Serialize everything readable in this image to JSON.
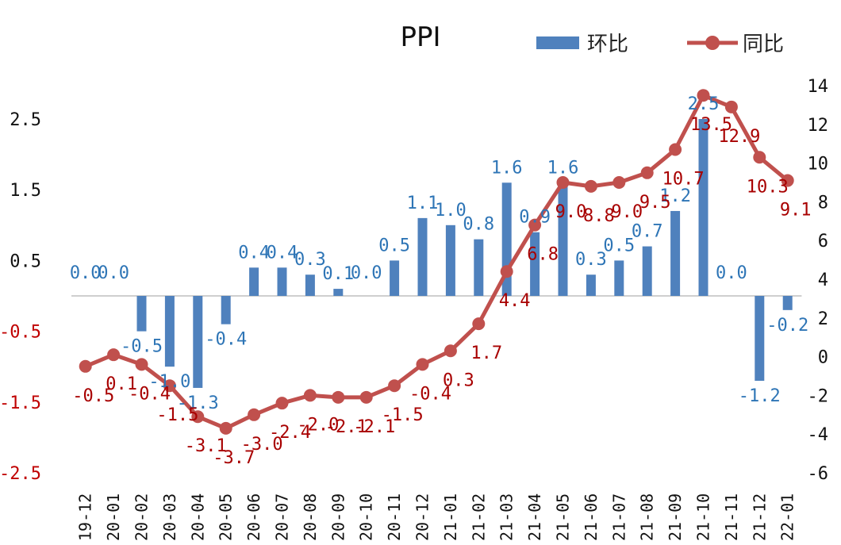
{
  "chart_data": {
    "type": "bar+line",
    "title": "PPI",
    "categories": [
      "19-12",
      "20-01",
      "20-02",
      "20-03",
      "20-04",
      "20-05",
      "20-06",
      "20-07",
      "20-08",
      "20-09",
      "20-10",
      "20-11",
      "20-12",
      "21-01",
      "21-02",
      "21-03",
      "21-04",
      "21-05",
      "21-06",
      "21-07",
      "21-08",
      "21-09",
      "21-10",
      "21-11",
      "21-12",
      "22-01"
    ],
    "series": [
      {
        "name": "环比",
        "kind": "bar",
        "axis": "left",
        "color": "#4f81bd",
        "values": [
          0.0,
          0.0,
          -0.5,
          -1.0,
          -1.3,
          -0.4,
          0.4,
          0.4,
          0.3,
          0.1,
          0.0,
          0.5,
          1.1,
          1.0,
          0.8,
          1.6,
          0.9,
          1.6,
          0.3,
          0.5,
          0.7,
          1.2,
          2.5,
          0.0,
          -1.2,
          -0.2
        ],
        "labels": [
          "0.0",
          "0.0",
          "-0.5",
          "-1.0",
          "-1.3",
          "-0.4",
          "0.4",
          "0.4",
          "0.3",
          "0.1",
          "0.0",
          "0.5",
          "1.1",
          "1.0",
          "0.8",
          "1.6",
          "0.9",
          "1.6",
          "0.3",
          "0.5",
          "0.7",
          "1.2",
          "2.5",
          "0.0",
          "-1.2",
          "-0.2"
        ]
      },
      {
        "name": "同比",
        "kind": "line",
        "axis": "right",
        "color": "#c0504d",
        "values": [
          -0.5,
          0.1,
          -0.4,
          -1.5,
          -3.1,
          -3.7,
          -3.0,
          -2.4,
          -2.0,
          -2.1,
          -2.1,
          -1.5,
          -0.4,
          0.3,
          1.7,
          4.4,
          6.8,
          9.0,
          8.8,
          9.0,
          9.5,
          10.7,
          13.5,
          12.9,
          10.3,
          9.1
        ],
        "labels": [
          "-0.5",
          "0.1",
          "-0.4",
          "-1.5",
          "-3.1",
          "-3.7",
          "-3.0",
          "-2.4",
          "-2.0",
          "-2.1",
          "-2.1",
          "-1.5",
          "-0.4",
          "0.3",
          "1.7",
          "4.4",
          "6.8",
          "9.0",
          "8.8",
          "9.0",
          "9.5",
          "10.7",
          "13.5",
          "12.9",
          "10.3",
          "9.1"
        ]
      }
    ],
    "left_axis": {
      "ylim": [
        -2.5,
        2.5
      ],
      "ticks": [
        2.5,
        1.5,
        0.5,
        -0.5,
        -1.5,
        -2.5
      ],
      "tick_labels": [
        "2.5",
        "1.5",
        "0.5",
        "-0.5",
        "-1.5",
        "-2.5"
      ],
      "positive_color": "#111111",
      "negative_color": "#c00000"
    },
    "right_axis": {
      "ylim": [
        -6,
        14
      ],
      "ticks": [
        14,
        12,
        10,
        8,
        6,
        4,
        2,
        0,
        -2,
        -4,
        -6
      ],
      "tick_labels": [
        "14",
        "12",
        "10",
        "8",
        "6",
        "4",
        "2",
        "0",
        "-2",
        "-4",
        "-6"
      ],
      "positive_color": "#111111",
      "negative_color": "#c00000"
    },
    "legend": {
      "position": "top-right",
      "entries": [
        {
          "name": "环比",
          "marker": "bar",
          "color": "#4f81bd"
        },
        {
          "name": "同比",
          "marker": "line-dot",
          "color": "#c0504d"
        }
      ]
    },
    "grid": false
  }
}
